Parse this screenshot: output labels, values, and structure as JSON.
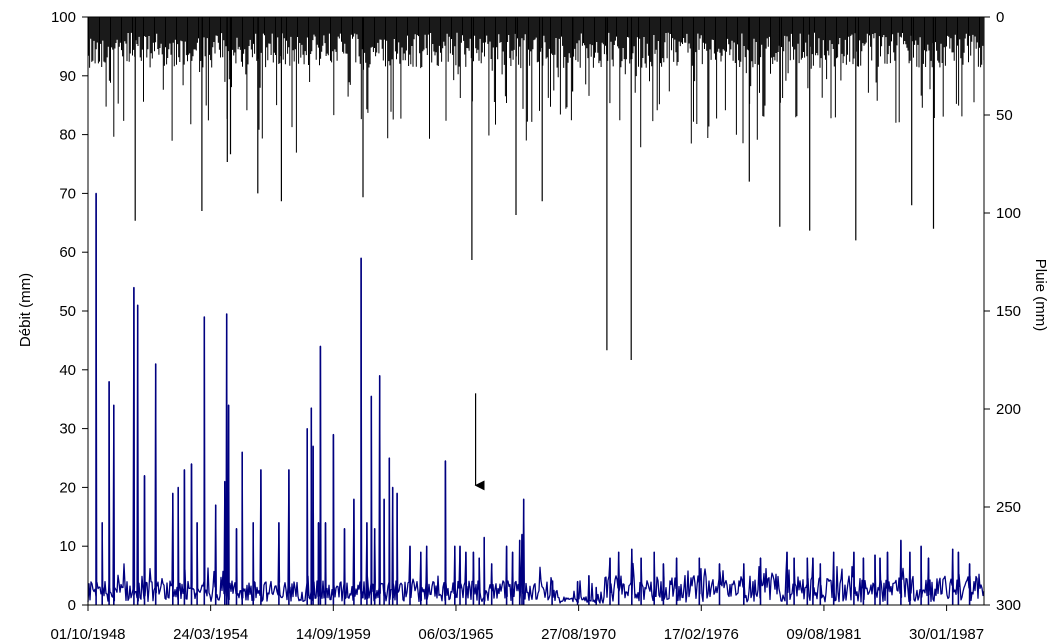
{
  "chart_data": {
    "type": "line",
    "ylabel_left": "Débit (mm)",
    "ylabel_right": "Pluie (mm)",
    "x_tick_labels": [
      "01/10/1948",
      "24/03/1954",
      "14/09/1959",
      "06/03/1965",
      "27/08/1970",
      "17/02/1976",
      "09/08/1981",
      "30/01/1987"
    ],
    "x_range": [
      "01/10/1948",
      "01/10/1988"
    ],
    "y_left_ticks": [
      0,
      10,
      20,
      30,
      40,
      50,
      60,
      70,
      80,
      90,
      100
    ],
    "y_left_range": [
      0,
      100
    ],
    "y_right_ticks": [
      0,
      50,
      100,
      150,
      200,
      250,
      300
    ],
    "y_right_range": [
      0,
      300
    ],
    "y_right_inverted": true,
    "grid": false,
    "colors": {
      "debit": "#000080",
      "pluie": "#000000",
      "arrow": "#000000"
    },
    "debit_peaks": [
      [
        "1949-02-10",
        70
      ],
      [
        "1949-05-20",
        14
      ],
      [
        "1949-09-10",
        38
      ],
      [
        "1949-11-25",
        34
      ],
      [
        "1950-10-20",
        54
      ],
      [
        "1950-12-20",
        51
      ],
      [
        "1951-04-10",
        22
      ],
      [
        "1951-10-10",
        41
      ],
      [
        "1952-07-15",
        19
      ],
      [
        "1952-10-10",
        20
      ],
      [
        "1953-01-20",
        23
      ],
      [
        "1953-05-15",
        24
      ],
      [
        "1953-08-15",
        14
      ],
      [
        "1953-12-10",
        49
      ],
      [
        "1954-06-15",
        17
      ],
      [
        "1954-11-10",
        21
      ],
      [
        "1954-12-10",
        49.5
      ],
      [
        "1955-01-10",
        34
      ],
      [
        "1955-05-20",
        13
      ],
      [
        "1955-08-20",
        26
      ],
      [
        "1956-02-15",
        14
      ],
      [
        "1956-06-20",
        23
      ],
      [
        "1957-04-10",
        14
      ],
      [
        "1957-09-20",
        23
      ],
      [
        "1958-07-15",
        30
      ],
      [
        "1958-09-20",
        33.5
      ],
      [
        "1958-10-20",
        27
      ],
      [
        "1959-01-15",
        14
      ],
      [
        "1959-02-15",
        44
      ],
      [
        "1959-05-10",
        14
      ],
      [
        "1959-09-15",
        29
      ],
      [
        "1960-03-15",
        13
      ],
      [
        "1960-08-15",
        18
      ],
      [
        "1960-12-10",
        59
      ],
      [
        "1961-03-15",
        14
      ],
      [
        "1961-05-25",
        35.5
      ],
      [
        "1961-07-20",
        13
      ],
      [
        "1961-10-10",
        39
      ],
      [
        "1961-12-20",
        18
      ],
      [
        "1962-03-15",
        25
      ],
      [
        "1962-05-10",
        20
      ],
      [
        "1962-07-20",
        19
      ],
      [
        "1963-02-15",
        10
      ],
      [
        "1963-08-10",
        9
      ],
      [
        "1963-11-15",
        10
      ],
      [
        "1964-09-15",
        24.5
      ],
      [
        "1965-02-15",
        10
      ],
      [
        "1965-05-10",
        10
      ],
      [
        "1965-08-15",
        9
      ],
      [
        "1965-12-15",
        9
      ],
      [
        "1966-03-20",
        8
      ],
      [
        "1966-06-10",
        11.5
      ],
      [
        "1966-10-10",
        7
      ],
      [
        "1967-06-10",
        10
      ],
      [
        "1967-09-15",
        9
      ],
      [
        "1968-01-10",
        11
      ],
      [
        "1968-02-15",
        12
      ],
      [
        "1968-03-15",
        18
      ],
      [
        "1969-06-20",
        3
      ],
      [
        "1970-08-10",
        4
      ],
      [
        "1971-02-10",
        5
      ],
      [
        "1971-06-10",
        3
      ],
      [
        "1972-01-20",
        8
      ],
      [
        "1972-06-10",
        9
      ],
      [
        "1973-01-10",
        9.5
      ],
      [
        "1973-06-10",
        8
      ],
      [
        "1974-01-10",
        9
      ],
      [
        "1974-06-10",
        7
      ],
      [
        "1975-01-10",
        8
      ],
      [
        "1976-01-15",
        8
      ],
      [
        "1976-12-10",
        7
      ],
      [
        "1978-01-10",
        7
      ],
      [
        "1978-10-10",
        8
      ],
      [
        "1979-12-15",
        9
      ],
      [
        "1980-04-10",
        8
      ],
      [
        "1980-11-10",
        8
      ],
      [
        "1981-02-10",
        8
      ],
      [
        "1981-06-10",
        7
      ],
      [
        "1982-01-15",
        9
      ],
      [
        "1982-12-10",
        9
      ],
      [
        "1983-05-15",
        8
      ],
      [
        "1983-11-20",
        8.5
      ],
      [
        "1984-02-10",
        8
      ],
      [
        "1984-06-10",
        9
      ],
      [
        "1985-01-15",
        11
      ],
      [
        "1985-06-10",
        9
      ],
      [
        "1985-12-10",
        10
      ],
      [
        "1986-04-10",
        8
      ],
      [
        "1987-05-10",
        9.5
      ],
      [
        "1987-08-10",
        9
      ],
      [
        "1988-02-10",
        7
      ]
    ],
    "pluie_peaks": [
      [
        "1950-11-10",
        104
      ],
      [
        "1953-11-01",
        99
      ],
      [
        "1954-12-20",
        74
      ],
      [
        "1955-02-10",
        70
      ],
      [
        "1956-05-01",
        90
      ],
      [
        "1957-05-20",
        94
      ],
      [
        "1961-01-10",
        92
      ],
      [
        "1965-11-20",
        124
      ],
      [
        "1967-11-10",
        101
      ],
      [
        "1969-01-10",
        94
      ],
      [
        "1970-05-20",
        38
      ],
      [
        "1971-12-01",
        170
      ],
      [
        "1973-01-01",
        175
      ],
      [
        "1978-04-10",
        84
      ],
      [
        "1979-08-20",
        107
      ],
      [
        "1980-12-20",
        109
      ],
      [
        "1983-01-10",
        114
      ],
      [
        "1985-07-10",
        96
      ],
      [
        "1986-07-01",
        108
      ]
    ],
    "annotation": {
      "type": "arrow",
      "date": "1966-01-20",
      "from_value": 36,
      "to_value": 20
    }
  }
}
